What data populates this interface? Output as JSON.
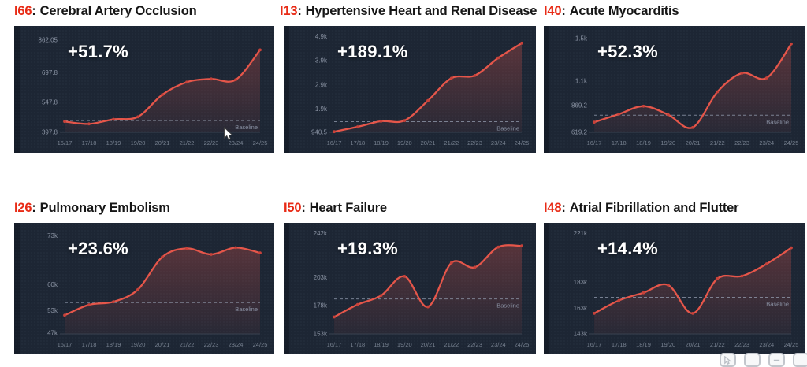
{
  "ui": {
    "separator": ":",
    "baseline_label": "Baseline",
    "toolbar_icons": [
      "pointer-icon",
      "shape-square-icon",
      "shape-square-minus-icon",
      "shape-square-icon"
    ]
  },
  "colors": {
    "page_bg": "#ffffff",
    "panel_bg": "#1d2634",
    "line": "#e5564a",
    "marker": "#c8423a",
    "area_top": "rgba(225,84,74,0.33)",
    "area_bottom": "rgba(225,84,74,0.06)",
    "axis_text": "#8ema:wrong",
    "ytick_text": "#8b94a4",
    "xtick_text": "#76808f",
    "baseline": "#949db0",
    "axis_line": "#39414f",
    "title_code": "#e82b16",
    "title_text": "#161616",
    "pct_text": "#ffffff"
  },
  "chart_data": [
    {
      "type": "area",
      "code": "I66",
      "name": "Cerebral Artery Occlusion",
      "change_label": "+51.7%",
      "categories": [
        "16/17",
        "17/18",
        "18/19",
        "19/20",
        "20/21",
        "21/22",
        "22/23",
        "23/24",
        "24/25"
      ],
      "values": [
        452,
        440,
        463,
        476,
        587,
        650,
        666,
        662,
        812
      ],
      "yticks": [
        {
          "label": "862.05",
          "value": 862.05
        },
        {
          "label": "697.8",
          "value": 697.8
        },
        {
          "label": "547.8",
          "value": 547.8
        },
        {
          "label": "397.8",
          "value": 397.8
        }
      ],
      "ylim": [
        397.8,
        885
      ],
      "baseline_value": 457,
      "legend": "none",
      "grid": "off"
    },
    {
      "type": "area",
      "code": "I13",
      "name": "Hypertensive Heart and Renal Disease",
      "change_label": "+189.1%",
      "categories": [
        "16/17",
        "17/18",
        "18/19",
        "19/20",
        "20/21",
        "21/22",
        "22/23",
        "23/24",
        "24/25"
      ],
      "values": [
        965,
        1170,
        1400,
        1425,
        2255,
        3180,
        3290,
        4020,
        4630
      ],
      "yticks": [
        {
          "label": "4.9k",
          "value": 4900
        },
        {
          "label": "3.9k",
          "value": 3900
        },
        {
          "label": "2.9k",
          "value": 2900
        },
        {
          "label": "1.9k",
          "value": 1900
        },
        {
          "label": "940.5",
          "value": 940.5
        }
      ],
      "ylim": [
        940.5,
        4950
      ],
      "baseline_value": 1380,
      "legend": "none",
      "grid": "off"
    },
    {
      "type": "area",
      "code": "I40",
      "name": "Acute Myocarditis",
      "change_label": "+52.3%",
      "categories": [
        "16/17",
        "17/18",
        "18/19",
        "19/20",
        "20/21",
        "21/22",
        "22/23",
        "23/24",
        "24/25"
      ],
      "values": [
        715,
        790,
        865,
        785,
        665,
        1000,
        1175,
        1130,
        1450
      ],
      "yticks": [
        {
          "label": "1.5k",
          "value": 1500
        },
        {
          "label": "1.1k",
          "value": 1100
        },
        {
          "label": "869.2",
          "value": 869.2
        },
        {
          "label": "619.2",
          "value": 619.2
        }
      ],
      "ylim": [
        619.2,
        1530
      ],
      "baseline_value": 780,
      "legend": "none",
      "grid": "off"
    },
    {
      "type": "area",
      "code": "I26",
      "name": "Pulmonary Embolism",
      "change_label": "+23.6%",
      "categories": [
        "16/17",
        "17/18",
        "18/19",
        "19/20",
        "20/21",
        "21/22",
        "22/23",
        "23/24",
        "24/25"
      ],
      "values": [
        51800,
        54600,
        55400,
        58700,
        67400,
        69700,
        68100,
        69900,
        68500
      ],
      "yticks": [
        {
          "label": "73k",
          "value": 73000
        },
        {
          "label": "60k",
          "value": 60000
        },
        {
          "label": "53k",
          "value": 53000
        },
        {
          "label": "47k",
          "value": 47000
        }
      ],
      "ylim": [
        46800,
        74000
      ],
      "baseline_value": 55200,
      "legend": "none",
      "grid": "off"
    },
    {
      "type": "area",
      "code": "I50",
      "name": "Heart Failure",
      "change_label": "+19.3%",
      "categories": [
        "16/17",
        "17/18",
        "18/19",
        "19/20",
        "20/21",
        "21/22",
        "22/23",
        "23/24",
        "24/25"
      ],
      "values": [
        168000,
        179000,
        187000,
        204000,
        177000,
        216000,
        212000,
        230000,
        231000
      ],
      "yticks": [
        {
          "label": "242k",
          "value": 242000
        },
        {
          "label": "203k",
          "value": 203000
        },
        {
          "label": "178k",
          "value": 178000
        },
        {
          "label": "153k",
          "value": 153000
        }
      ],
      "ylim": [
        153000,
        243000
      ],
      "baseline_value": 184000,
      "legend": "none",
      "grid": "off"
    },
    {
      "type": "area",
      "code": "I48",
      "name": "Atrial Fibrillation and Flutter",
      "change_label": "+14.4%",
      "categories": [
        "16/17",
        "17/18",
        "18/19",
        "19/20",
        "20/21",
        "21/22",
        "22/23",
        "23/24",
        "24/25"
      ],
      "values": [
        159000,
        169000,
        175000,
        181000,
        159000,
        186000,
        188000,
        197500,
        210000
      ],
      "yticks": [
        {
          "label": "221k",
          "value": 221000
        },
        {
          "label": "183k",
          "value": 183000
        },
        {
          "label": "163k",
          "value": 163000
        },
        {
          "label": "143k",
          "value": 143000
        }
      ],
      "ylim": [
        143000,
        222000
      ],
      "baseline_value": 171500,
      "legend": "none",
      "grid": "off"
    }
  ]
}
